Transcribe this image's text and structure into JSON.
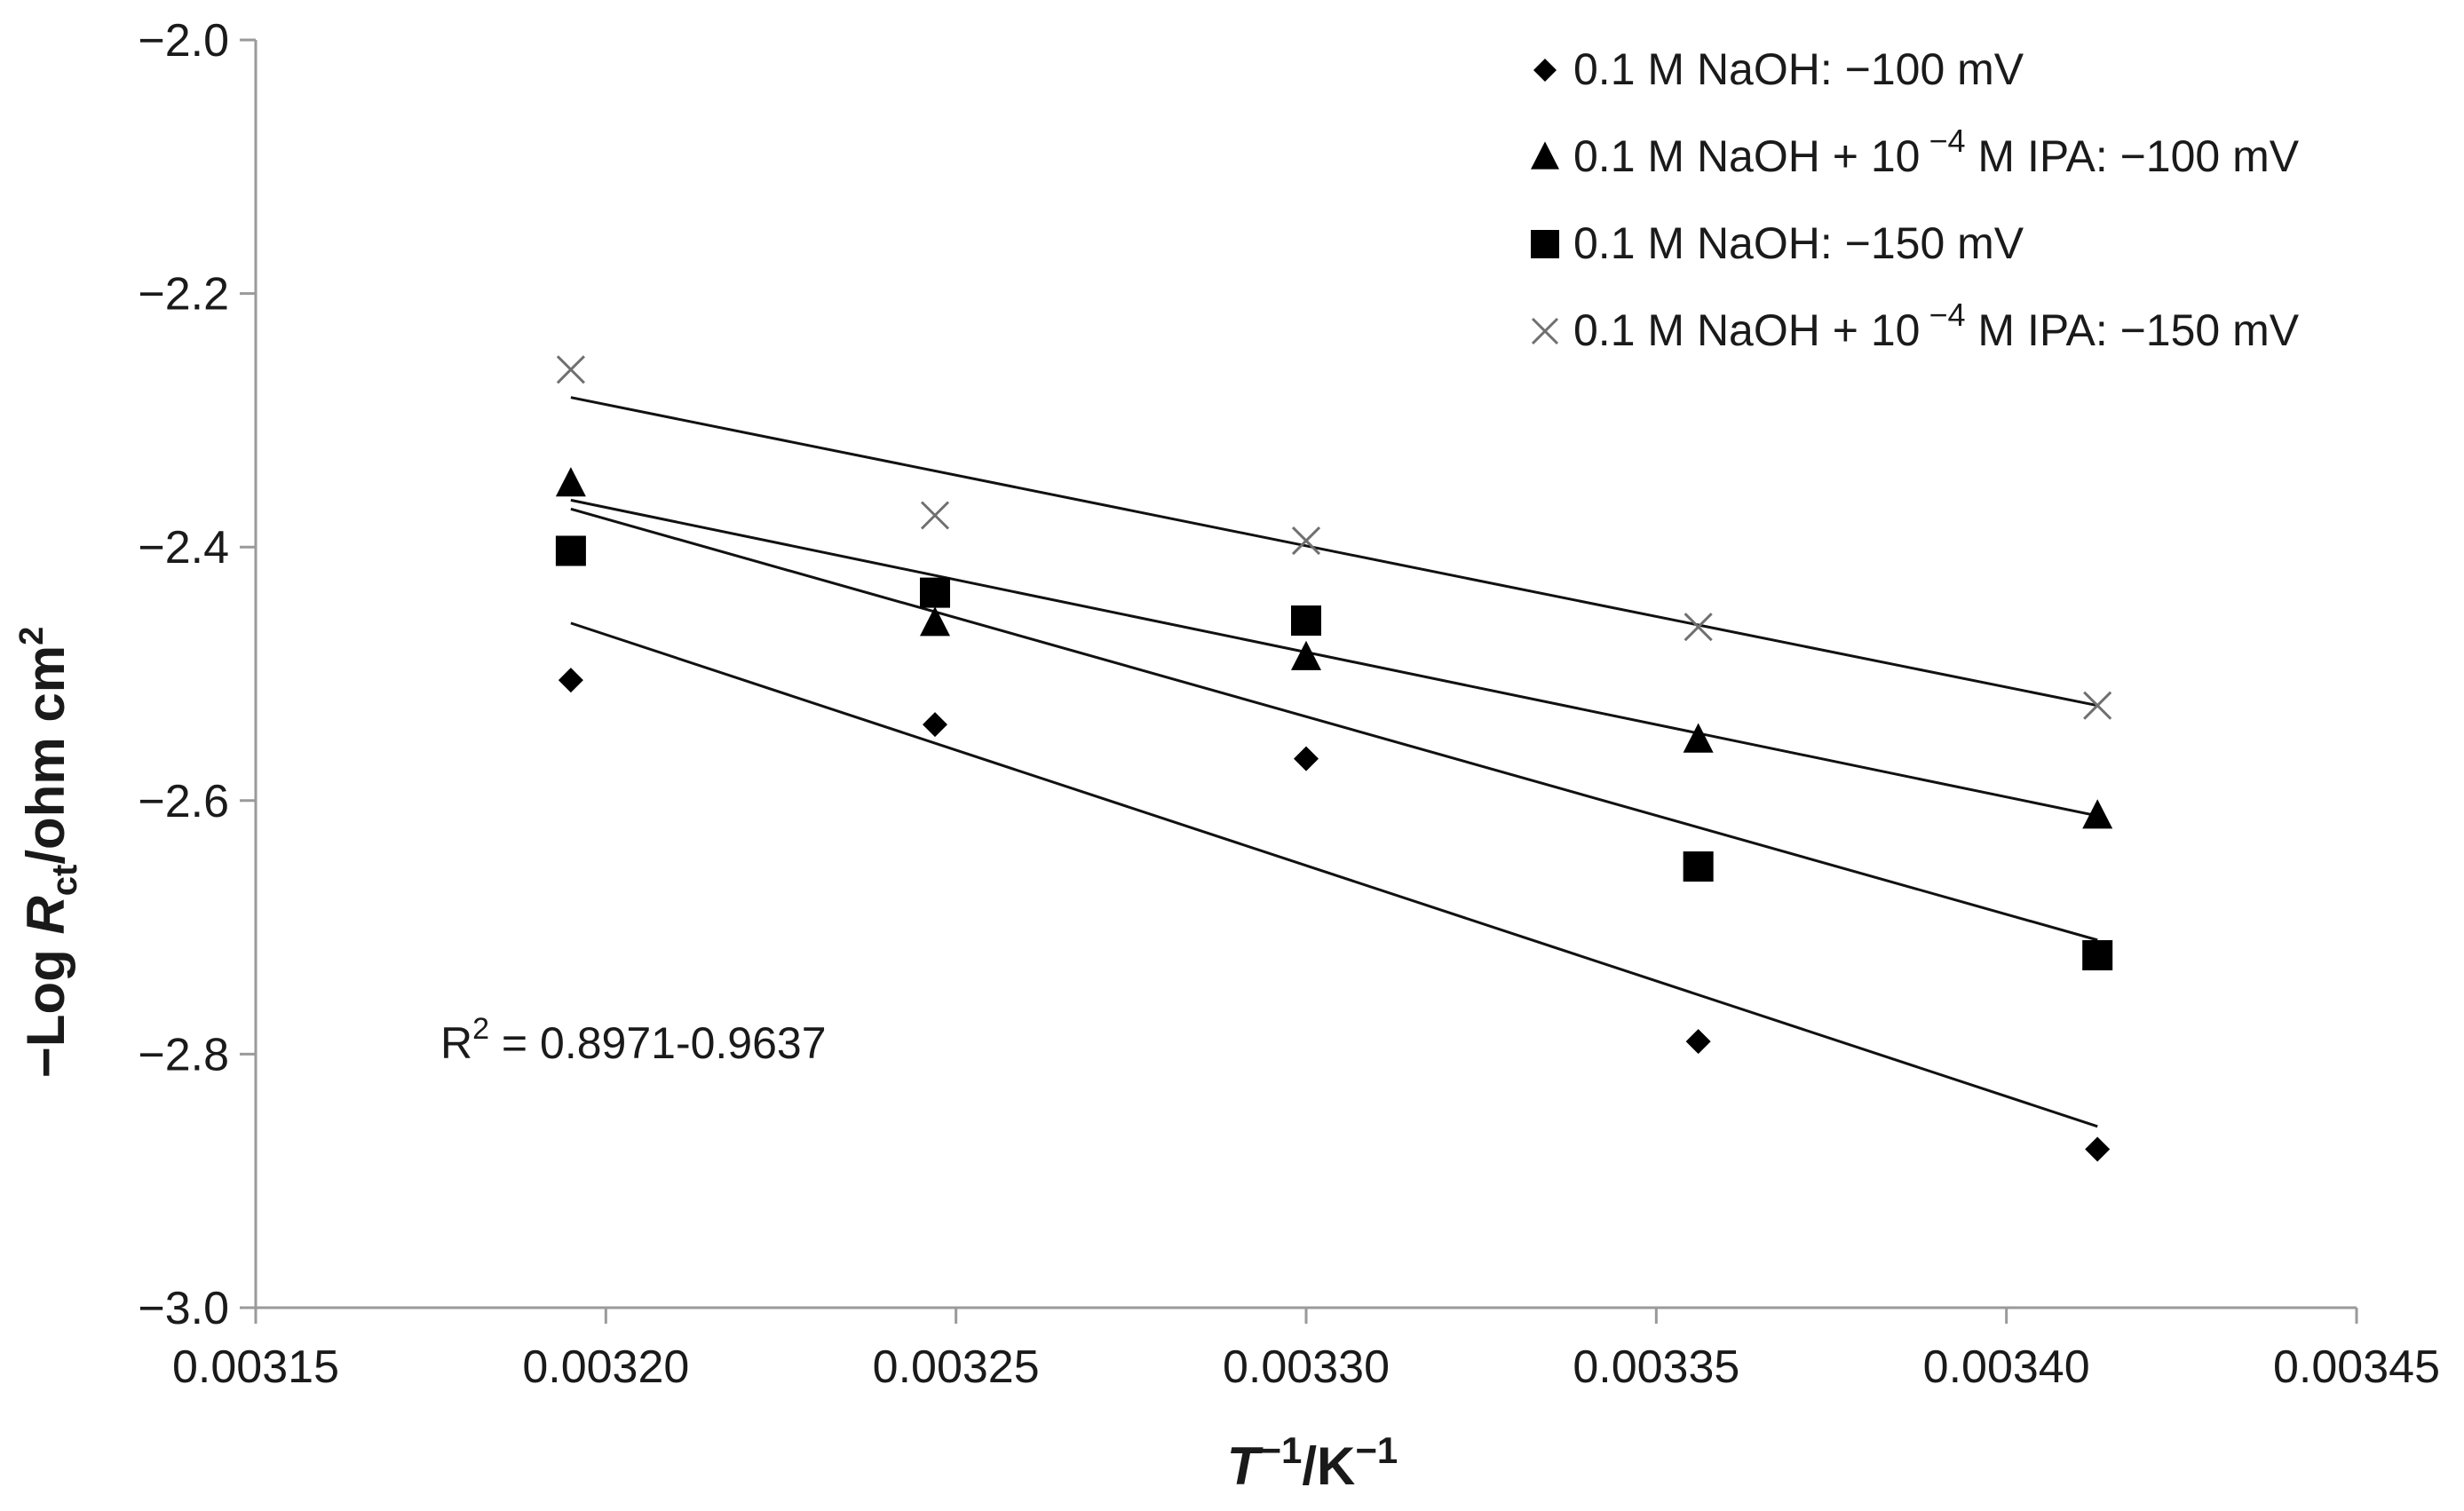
{
  "chart_data": {
    "type": "scatter",
    "xlabel": {
      "main": "T",
      "sup1": "−1",
      "unit": "/K",
      "sup2": "−1"
    },
    "ylabel": {
      "prefix": "−Log ",
      "main": "R",
      "sub": "ct",
      "unit": "/ohm cm",
      "sup": "2"
    },
    "xlim": [
      0.00315,
      0.00345
    ],
    "ylim": [
      -3.0,
      -2.0
    ],
    "x_ticks": [
      0.00315,
      0.0032,
      0.00325,
      0.0033,
      0.00335,
      0.0034,
      0.00345
    ],
    "x_tick_labels": [
      "0.00315",
      "0.00320",
      "0.00325",
      "0.00330",
      "0.00335",
      "0.00340",
      "0.00345"
    ],
    "y_ticks": [
      -2.0,
      -2.2,
      -2.4,
      -2.6,
      -2.8,
      -3.0
    ],
    "y_tick_labels": [
      "−2.0",
      "−2.2",
      "−2.4",
      "−2.6",
      "−2.8",
      "−3.0"
    ],
    "grid": false,
    "legend_position": "top-right",
    "x": [
      0.003195,
      0.003247,
      0.0033,
      0.003356,
      0.003413
    ],
    "series": [
      {
        "legend": {
          "base": "0.1 M NaOH:  −100 mV",
          "exp": "",
          "tail": ""
        },
        "marker": "diamond",
        "color": "#000000",
        "y": [
          -2.505,
          -2.54,
          -2.567,
          -2.79,
          -2.875
        ],
        "fit": {
          "y_start": -2.46,
          "y_end": -2.857
        }
      },
      {
        "legend": {
          "base": "0.1 M NaOH + 10",
          "exp": " −4",
          "tail": " M IPA:  −100 mV"
        },
        "marker": "triangle",
        "color": "#000000",
        "y": [
          -2.35,
          -2.46,
          -2.487,
          -2.552,
          -2.612
        ],
        "fit": {
          "y_start": -2.363,
          "y_end": -2.612
        }
      },
      {
        "legend": {
          "base": "0.1 M NaOH:   −150 mV",
          "exp": "",
          "tail": ""
        },
        "marker": "square",
        "color": "#000000",
        "y": [
          -2.403,
          -2.436,
          -2.458,
          -2.652,
          -2.722
        ],
        "fit": {
          "y_start": -2.37,
          "y_end": -2.71
        }
      },
      {
        "legend": {
          "base": "0.1 M NaOH + 10",
          "exp": " −4",
          "tail": " M IPA: −150 mV"
        },
        "marker": "x",
        "color": "#707070",
        "y": [
          -2.26,
          -2.375,
          -2.395,
          -2.463,
          -2.525
        ],
        "fit": {
          "y_start": -2.282,
          "y_end": -2.525
        }
      }
    ],
    "annotation": {
      "prefix": "R",
      "sup": "2",
      "text": " = 0.8971-0.9637"
    }
  }
}
